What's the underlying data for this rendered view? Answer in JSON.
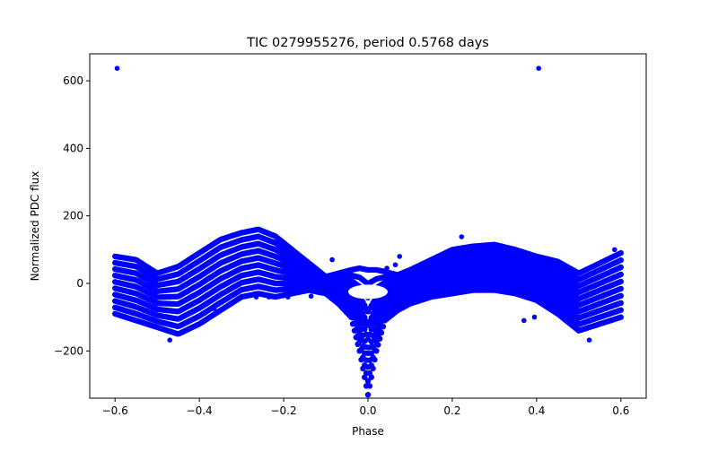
{
  "chart_data": {
    "type": "scatter",
    "title": "TIC 0279955276, period 0.5768 days",
    "xlabel": "Phase",
    "ylabel": "Normalized PDC flux",
    "xlim": [
      -0.66,
      0.66
    ],
    "ylim": [
      -340,
      680
    ],
    "xticks": [
      -0.6,
      -0.4,
      -0.2,
      0.0,
      0.2,
      0.4,
      0.6
    ],
    "xtick_labels": [
      "−0.6",
      "−0.4",
      "−0.2",
      "0.0",
      "0.2",
      "0.4",
      "0.6"
    ],
    "yticks": [
      -200,
      0,
      200,
      400,
      600
    ],
    "ytick_labels": [
      "−200",
      "0",
      "200",
      "400",
      "600"
    ],
    "grid": false,
    "color": "#0000ff",
    "series": [
      {
        "band_envelope": {
          "x": [
            -0.6,
            -0.55,
            -0.5,
            -0.45,
            -0.4,
            -0.35,
            -0.3,
            -0.26,
            -0.22,
            -0.18,
            -0.14,
            -0.1,
            -0.07,
            -0.04,
            -0.02,
            0.0,
            0.02,
            0.04,
            0.07,
            0.1,
            0.15,
            0.2,
            0.25,
            0.3,
            0.35,
            0.4,
            0.45,
            0.5,
            0.55,
            0.6
          ],
          "upper": [
            80,
            70,
            30,
            50,
            90,
            130,
            150,
            160,
            140,
            100,
            60,
            20,
            30,
            40,
            45,
            40,
            40,
            35,
            25,
            40,
            70,
            100,
            110,
            115,
            100,
            80,
            65,
            30,
            60,
            90
          ],
          "lower": [
            -90,
            -110,
            -130,
            -150,
            -120,
            -80,
            -40,
            -30,
            -40,
            -30,
            -20,
            -30,
            -60,
            -100,
            -200,
            -330,
            -200,
            -110,
            -80,
            -60,
            -40,
            -30,
            -20,
            -20,
            -30,
            -50,
            -90,
            -140,
            -120,
            -100
          ]
        },
        "outliers": [
          {
            "x": -0.595,
            "y": 637
          },
          {
            "x": 0.405,
            "y": 637
          },
          {
            "x": 0.222,
            "y": 138
          },
          {
            "x": -0.47,
            "y": -168
          },
          {
            "x": 0.525,
            "y": -168
          },
          {
            "x": -0.365,
            "y": -75
          },
          {
            "x": 0.37,
            "y": -110
          },
          {
            "x": 0.075,
            "y": 80
          },
          {
            "x": 0.065,
            "y": 55
          },
          {
            "x": -0.085,
            "y": 70
          },
          {
            "x": 0.045,
            "y": 45
          },
          {
            "x": -0.265,
            "y": -40
          },
          {
            "x": -0.235,
            "y": -40
          },
          {
            "x": -0.19,
            "y": -40
          },
          {
            "x": -0.135,
            "y": -38
          },
          {
            "x": 0.585,
            "y": 100
          },
          {
            "x": 0.395,
            "y": -100
          }
        ]
      }
    ]
  }
}
